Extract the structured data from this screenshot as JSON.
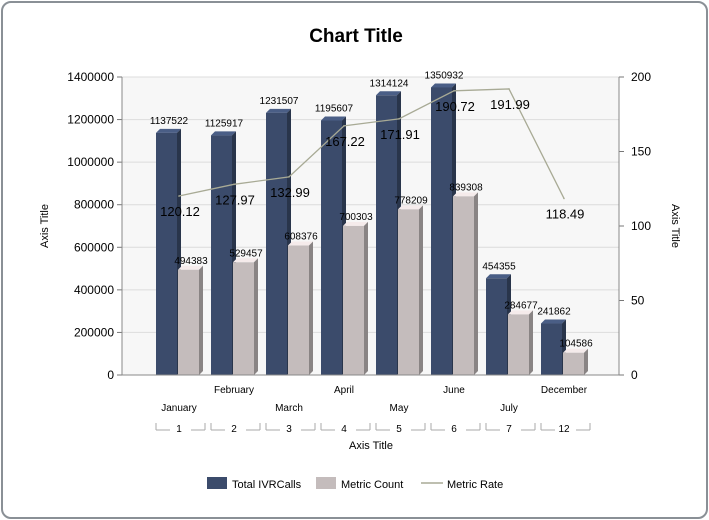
{
  "chart_data": {
    "type": "bar",
    "title": "Chart Title",
    "xlabel": "Axis Title",
    "ylabel": "Axis Title",
    "y2label": "Axis Title",
    "ylim": [
      0,
      1400000
    ],
    "y2lim": [
      0,
      200
    ],
    "yticks": [
      "0",
      "200000",
      "400000",
      "600000",
      "800000",
      "1000000",
      "1200000",
      "1400000"
    ],
    "y2ticks": [
      "0",
      "50",
      "100",
      "150",
      "200"
    ],
    "months": [
      "January",
      "February",
      "March",
      "April",
      "May",
      "June",
      "July",
      "December"
    ],
    "categories": [
      "1",
      "2",
      "3",
      "4",
      "5",
      "6",
      "7",
      "12"
    ],
    "series": [
      {
        "name": "Total IVRCalls",
        "type": "bar",
        "color": "#3b4b6b",
        "values": [
          1137522,
          1125917,
          1231507,
          1195607,
          1314124,
          1350932,
          454355,
          241862
        ]
      },
      {
        "name": "Metric Count",
        "type": "bar",
        "color": "#c4bcbc",
        "values": [
          494383,
          529457,
          608376,
          700303,
          778209,
          839308,
          284677,
          104586
        ]
      },
      {
        "name": "Metric Rate",
        "type": "line",
        "axis": "secondary",
        "color": "#a8aa95",
        "values": [
          120.12,
          127.97,
          132.99,
          167.22,
          171.91,
          190.72,
          191.99,
          118.49
        ]
      }
    ],
    "grid": true,
    "legend_position": "bottom"
  }
}
